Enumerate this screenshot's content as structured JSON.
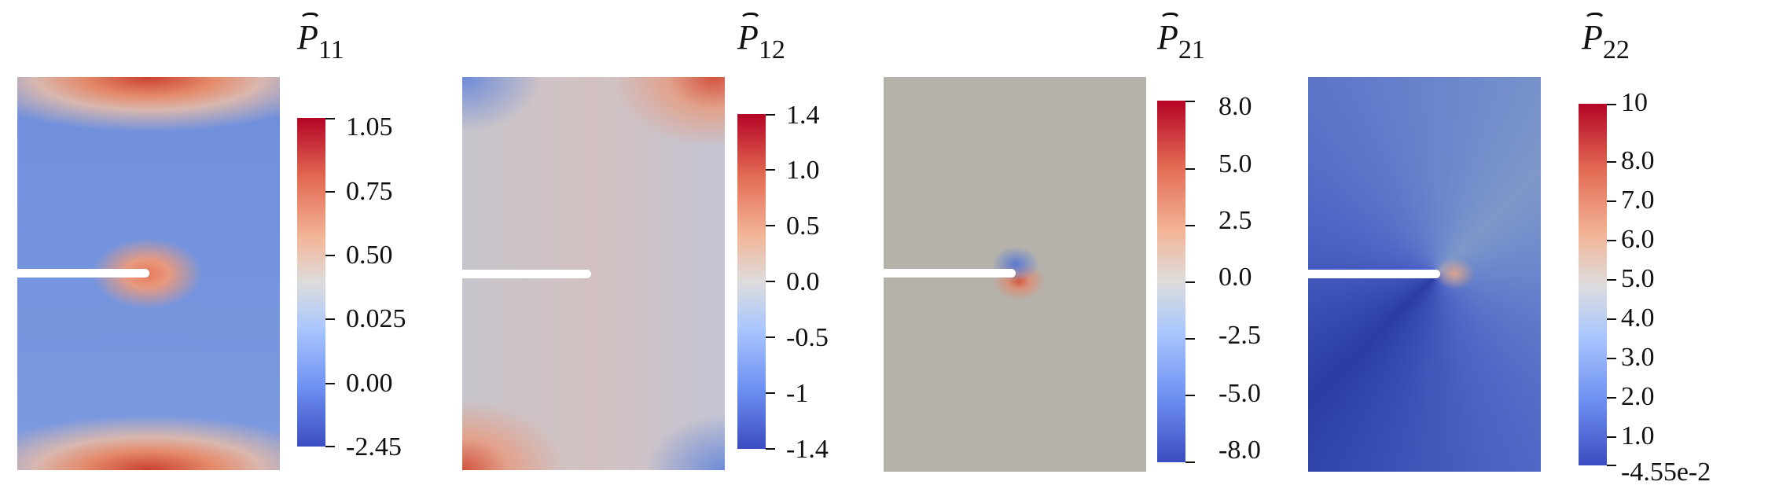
{
  "panels": [
    {
      "symbol": "P",
      "subscript": "11",
      "ticks": [
        "1.05",
        "0.75",
        "0.50",
        "0.025",
        "0.00",
        "-2.45"
      ]
    },
    {
      "symbol": "P",
      "subscript": "12",
      "ticks": [
        "1.4",
        "1.0",
        "0.5",
        "0.0",
        "-0.5",
        "-1",
        "-1.4"
      ]
    },
    {
      "symbol": "P",
      "subscript": "21",
      "ticks": [
        "8.0",
        "5.0",
        "2.5",
        "0.0",
        "-2.5",
        "-5.0",
        "-8.0"
      ]
    },
    {
      "symbol": "P",
      "subscript": "22",
      "ticks": [
        "10",
        "8.0",
        "7.0",
        "6.0",
        "5.0",
        "4.0",
        "3.0",
        "2.0",
        "1.0",
        "-4.55e-2"
      ]
    }
  ],
  "colors": {
    "colormap_high": "#b40426",
    "colormap_mid": "#dddcdc",
    "colormap_low": "#3b4cc0"
  }
}
